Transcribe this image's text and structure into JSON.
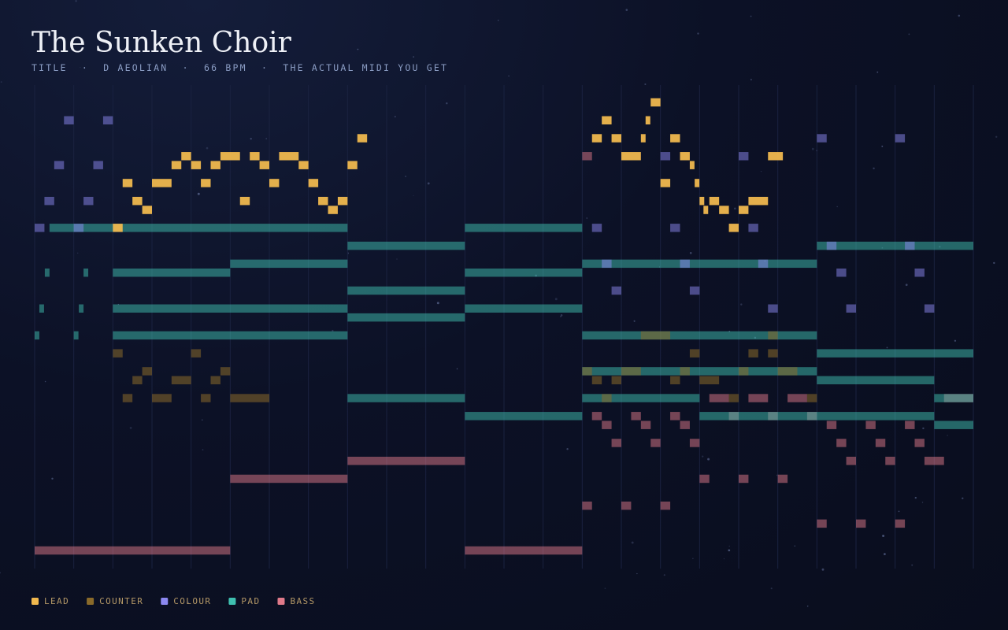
{
  "chart_data": {
    "type": "pianoroll",
    "title": "The Sunken Choir",
    "subtitle": "TITLE  ·  D AEOLIAN  ·  66 BPM  ·  THE ACTUAL MIDI YOU GET",
    "xlim": [
      0,
      24
    ],
    "ylim": [
      36,
      86
    ],
    "xticks": [
      0,
      1,
      2,
      3,
      4,
      5,
      6,
      7,
      8,
      9,
      10,
      11,
      12,
      13,
      14,
      15,
      16,
      17,
      18,
      19,
      20,
      21,
      22,
      23,
      24
    ],
    "grid": true,
    "series": [
      {
        "name": "LEAD",
        "color": "#f0b84e",
        "notes": [
          [
            2,
            0.25,
            72
          ],
          [
            17.75,
            0.25,
            72
          ],
          [
            2.75,
            0.25,
            74
          ],
          [
            7.5,
            0.25,
            74
          ],
          [
            17.1,
            0.12,
            74
          ],
          [
            17.5,
            0.25,
            74
          ],
          [
            18,
            0.25,
            74
          ],
          [
            2.5,
            0.25,
            75
          ],
          [
            5.25,
            0.25,
            75
          ],
          [
            7.25,
            0.25,
            75
          ],
          [
            7.75,
            0.25,
            75
          ],
          [
            17,
            0.12,
            75
          ],
          [
            17.25,
            0.25,
            75
          ],
          [
            18.25,
            0.5,
            75
          ],
          [
            2.25,
            0.25,
            77
          ],
          [
            3,
            0.5,
            77
          ],
          [
            4.25,
            0.25,
            77
          ],
          [
            6,
            0.25,
            77
          ],
          [
            7,
            0.25,
            77
          ],
          [
            16,
            0.25,
            77
          ],
          [
            16.875,
            0.12,
            77
          ],
          [
            3.5,
            0.25,
            79
          ],
          [
            4,
            0.25,
            79
          ],
          [
            4.5,
            0.25,
            79
          ],
          [
            5.75,
            0.25,
            79
          ],
          [
            6.75,
            0.25,
            79
          ],
          [
            8,
            0.25,
            79
          ],
          [
            16.75,
            0.12,
            79
          ],
          [
            3.75,
            0.25,
            80
          ],
          [
            4.75,
            0.5,
            80
          ],
          [
            5.5,
            0.25,
            80
          ],
          [
            6.25,
            0.5,
            80
          ],
          [
            15,
            0.5,
            80
          ],
          [
            16.5,
            0.25,
            80
          ],
          [
            18.75,
            0.38,
            80
          ],
          [
            8.25,
            0.25,
            82
          ],
          [
            14.25,
            0.25,
            82
          ],
          [
            14.75,
            0.25,
            82
          ],
          [
            15.5,
            0.12,
            82
          ],
          [
            16.25,
            0.25,
            82
          ],
          [
            14.5,
            0.25,
            84
          ],
          [
            15.62,
            0.12,
            84
          ],
          [
            15.75,
            0.25,
            86
          ]
        ]
      },
      {
        "name": "COUNTER",
        "color": "#8a6a2a",
        "notes": [
          [
            2,
            0.25,
            58
          ],
          [
            4,
            0.25,
            58
          ],
          [
            16.75,
            0.25,
            58
          ],
          [
            18.25,
            0.25,
            58
          ],
          [
            18.75,
            0.25,
            58
          ],
          [
            2.75,
            0.25,
            56
          ],
          [
            4.75,
            0.25,
            56
          ],
          [
            14,
            0.25,
            56
          ],
          [
            15,
            0.5,
            56
          ],
          [
            16.5,
            0.25,
            56
          ],
          [
            18,
            0.25,
            56
          ],
          [
            19,
            0.5,
            56
          ],
          [
            2.5,
            0.25,
            55
          ],
          [
            3.5,
            0.5,
            55
          ],
          [
            4.5,
            0.25,
            55
          ],
          [
            14.25,
            0.25,
            55
          ],
          [
            14.75,
            0.25,
            55
          ],
          [
            16.25,
            0.25,
            55
          ],
          [
            17,
            0.5,
            55
          ],
          [
            2.25,
            0.25,
            53
          ],
          [
            3,
            0.5,
            53
          ],
          [
            4.25,
            0.25,
            53
          ],
          [
            5,
            1,
            53
          ],
          [
            14.5,
            0.25,
            53
          ],
          [
            17.75,
            0.25,
            53
          ],
          [
            19.75,
            0.25,
            53
          ],
          [
            15.5,
            0.75,
            60
          ],
          [
            18.75,
            0.25,
            60
          ]
        ]
      },
      {
        "name": "COLOUR",
        "color": "#8c88f0",
        "notes": [
          [
            0.75,
            0.25,
            84
          ],
          [
            1.75,
            0.25,
            84
          ],
          [
            0.5,
            0.25,
            79
          ],
          [
            1.5,
            0.25,
            79
          ],
          [
            0.25,
            0.25,
            75
          ],
          [
            1.25,
            0.25,
            75
          ],
          [
            0,
            0.25,
            72
          ],
          [
            1,
            0.25,
            72
          ],
          [
            14.25,
            0.25,
            72
          ],
          [
            16.25,
            0.25,
            72
          ],
          [
            18.25,
            0.25,
            72
          ],
          [
            20,
            0.25,
            82
          ],
          [
            22,
            0.25,
            82
          ],
          [
            16,
            0.25,
            80
          ],
          [
            18,
            0.25,
            80
          ],
          [
            20.5,
            0.25,
            67
          ],
          [
            22.5,
            0.25,
            67
          ],
          [
            14.75,
            0.25,
            65
          ],
          [
            16.75,
            0.25,
            65
          ],
          [
            18.75,
            0.25,
            63
          ],
          [
            20.75,
            0.25,
            63
          ],
          [
            22.75,
            0.25,
            63
          ],
          [
            20.25,
            0.25,
            70
          ],
          [
            22.25,
            0.25,
            70
          ],
          [
            14.5,
            0.25,
            68
          ],
          [
            16.5,
            0.25,
            68
          ],
          [
            18.5,
            0.25,
            68
          ]
        ]
      },
      {
        "name": "PAD",
        "color": "#3fc0b0",
        "notes": [
          [
            0.38,
            7.62,
            72
          ],
          [
            11,
            3,
            72
          ],
          [
            8,
            3,
            70
          ],
          [
            20,
            4,
            70
          ],
          [
            5,
            3,
            68
          ],
          [
            14,
            6,
            68
          ],
          [
            0.26,
            0.12,
            67
          ],
          [
            1.25,
            0.12,
            67
          ],
          [
            2,
            3,
            67
          ],
          [
            11,
            3,
            67
          ],
          [
            8,
            3,
            65
          ],
          [
            0.12,
            0.12,
            63
          ],
          [
            1.13,
            0.12,
            63
          ],
          [
            2,
            6,
            63
          ],
          [
            11,
            3,
            63
          ],
          [
            8,
            3,
            62
          ],
          [
            0,
            0.12,
            60
          ],
          [
            1,
            0.12,
            60
          ],
          [
            2,
            6,
            60
          ],
          [
            14,
            6,
            60
          ],
          [
            20,
            4,
            58
          ],
          [
            14,
            6,
            56
          ],
          [
            20,
            3,
            55
          ],
          [
            8,
            3,
            53
          ],
          [
            14,
            3,
            53
          ],
          [
            23,
            1,
            53
          ],
          [
            11,
            3,
            51
          ],
          [
            17,
            6,
            51
          ],
          [
            23,
            1,
            50
          ]
        ]
      },
      {
        "name": "BASS",
        "color": "#e07a8a",
        "notes": [
          [
            0,
            5,
            36
          ],
          [
            11,
            3,
            36
          ],
          [
            5,
            3,
            44
          ],
          [
            17,
            0.25,
            44
          ],
          [
            18,
            0.25,
            44
          ],
          [
            19,
            0.25,
            44
          ],
          [
            8,
            3,
            46
          ],
          [
            20.75,
            0.25,
            46
          ],
          [
            21.75,
            0.25,
            46
          ],
          [
            22.75,
            0.5,
            46
          ],
          [
            14,
            0.25,
            41
          ],
          [
            15,
            0.25,
            41
          ],
          [
            16,
            0.25,
            41
          ],
          [
            20,
            0.25,
            39
          ],
          [
            21,
            0.25,
            39
          ],
          [
            22,
            0.25,
            39
          ],
          [
            14.75,
            0.25,
            48
          ],
          [
            15.75,
            0.25,
            48
          ],
          [
            16.75,
            0.25,
            48
          ],
          [
            20.5,
            0.25,
            48
          ],
          [
            21.5,
            0.25,
            48
          ],
          [
            22.5,
            0.25,
            48
          ],
          [
            14.5,
            0.25,
            50
          ],
          [
            15.5,
            0.25,
            50
          ],
          [
            16.5,
            0.25,
            50
          ],
          [
            20.25,
            0.25,
            50
          ],
          [
            21.25,
            0.25,
            50
          ],
          [
            22.25,
            0.25,
            50
          ],
          [
            14.25,
            0.25,
            51
          ],
          [
            15.25,
            0.25,
            51
          ],
          [
            16.25,
            0.25,
            51
          ],
          [
            17.75,
            0.25,
            51
          ],
          [
            18.75,
            0.25,
            51
          ],
          [
            19.75,
            0.25,
            51
          ],
          [
            17.25,
            0.5,
            53
          ],
          [
            18.25,
            0.5,
            53
          ],
          [
            19.25,
            0.5,
            53
          ],
          [
            23.25,
            0.75,
            53
          ],
          [
            14,
            0.25,
            80
          ]
        ]
      }
    ]
  }
}
